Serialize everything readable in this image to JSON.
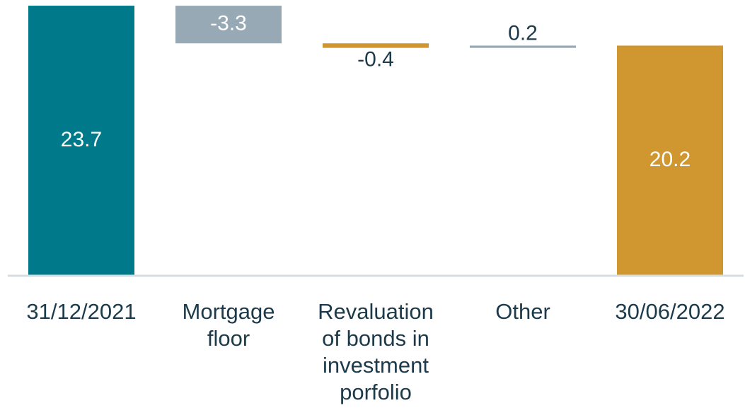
{
  "chart_data": {
    "type": "waterfall",
    "categories": [
      "31/12/2021",
      "Mortgage floor",
      "Revaluation of bonds in investment porfolio",
      "Other",
      "30/06/2022"
    ],
    "values": [
      23.7,
      -3.3,
      -0.4,
      0.2,
      20.2
    ],
    "colors": [
      "#007a8a",
      "#97a9b4",
      "#d09731",
      "#97a9b4",
      "#d09731"
    ],
    "ylim": [
      0,
      24.2
    ]
  }
}
